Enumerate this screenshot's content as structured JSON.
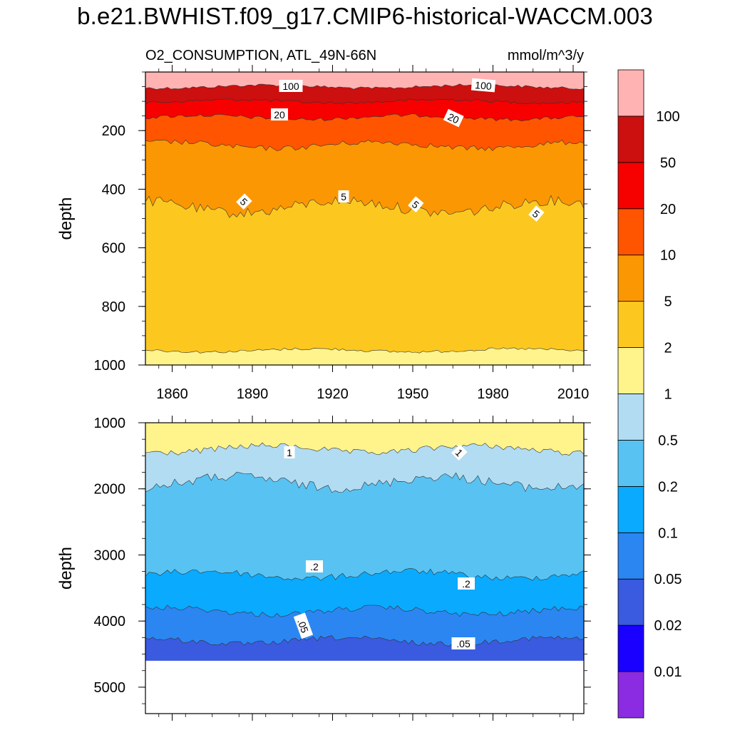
{
  "title": "b.e21.BWHIST.f09_g17.CMIP6-historical-WACCM.003",
  "chart_data": {
    "type": "contour",
    "variable": "O2_CONSUMPTION, ATL_49N-66N",
    "units": "mmol/m^3/y",
    "colorbar": {
      "levels": [
        "0.01",
        "0.02",
        "0.05",
        "0.1",
        "0.2",
        "0.5",
        "1",
        "2",
        "5",
        "10",
        "20",
        "50",
        "100"
      ],
      "colors": [
        "#8b2be2",
        "#1a00ff",
        "#3a5ae0",
        "#2b86f2",
        "#0aaaff",
        "#58c3f2",
        "#b2dcf2",
        "#fff38c",
        "#fcc820",
        "#fb9703",
        "#ff5500",
        "#f70000",
        "#cc0f0f",
        "#ffb3b3"
      ]
    },
    "panels": [
      {
        "name": "upper",
        "xlabel": "",
        "ylabel": "depth",
        "xlim": [
          1850,
          2014
        ],
        "ylim": [
          1000,
          0
        ],
        "yticks": [
          "200",
          "400",
          "600",
          "800",
          "1000"
        ],
        "xticks": [
          "1860",
          "1890",
          "1920",
          "1950",
          "1980",
          "2010"
        ],
        "contour_labels": [
          "100",
          "100",
          "20",
          "20",
          "5",
          "5",
          "5",
          "5"
        ],
        "bands": [
          {
            "from_level": "100",
            "depth_top": 0,
            "depth_bottom": 50
          },
          {
            "from_level": "50",
            "depth_top": 50,
            "depth_bottom": 100
          },
          {
            "from_level": "20",
            "depth_top": 100,
            "depth_bottom": 155
          },
          {
            "from_level": "10",
            "depth_top": 155,
            "depth_bottom": 250
          },
          {
            "from_level": "5",
            "depth_top": 250,
            "depth_bottom": 460
          },
          {
            "from_level": "2",
            "depth_top": 460,
            "depth_bottom": 950
          },
          {
            "from_level": "1",
            "depth_top": 950,
            "depth_bottom": 1000
          }
        ]
      },
      {
        "name": "lower",
        "xlabel": "",
        "ylabel": "depth",
        "xlim": [
          1850,
          2014
        ],
        "ylim": [
          5400,
          1000
        ],
        "yticks": [
          "1000",
          "2000",
          "3000",
          "4000",
          "5000"
        ],
        "contour_labels": [
          "1",
          "1",
          ".2",
          ".2",
          ".05",
          ".05"
        ],
        "bands": [
          {
            "from_level": "1",
            "depth_top": 1000,
            "depth_bottom": 1400
          },
          {
            "from_level": "0.5",
            "depth_top": 1400,
            "depth_bottom": 1900
          },
          {
            "from_level": "0.2",
            "depth_top": 1900,
            "depth_bottom": 3300
          },
          {
            "from_level": "0.1",
            "depth_top": 3300,
            "depth_bottom": 3850
          },
          {
            "from_level": "0.05",
            "depth_top": 3850,
            "depth_bottom": 4300
          },
          {
            "from_level": "0.02",
            "depth_top": 4300,
            "depth_bottom": 4600
          }
        ]
      }
    ]
  }
}
